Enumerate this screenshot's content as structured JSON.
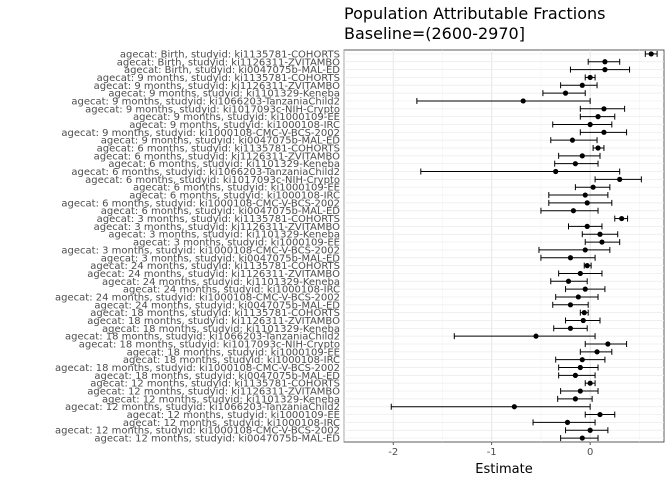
{
  "chart_data": {
    "type": "forest",
    "title": "Population Attributable Fractions",
    "subtitle": "Baseline=(2600-2970]",
    "xlabel": "Estimate",
    "xlim": [
      -2.5,
      0.75
    ],
    "x_ticks": [
      -2,
      -1,
      0
    ],
    "x_tick_labels": [
      "-2",
      "-1",
      "0"
    ],
    "grid": true,
    "rows": [
      {
        "label": "agecat: Birth, studyid: ki1135781-COHORTS",
        "est": 0.62,
        "lo": 0.56,
        "hi": 0.68
      },
      {
        "label": "agecat: Birth, studyid: ki1126311-ZVITAMBO",
        "est": 0.15,
        "lo": -0.02,
        "hi": 0.3
      },
      {
        "label": "agecat: Birth, studyid: ki0047075b-MAL-ED",
        "est": 0.15,
        "lo": -0.2,
        "hi": 0.4
      },
      {
        "label": "agecat: 9 months, studyid: ki1135781-COHORTS",
        "est": 0.0,
        "lo": -0.05,
        "hi": 0.05
      },
      {
        "label": "agecat: 9 months, studyid: ki1126311-ZVITAMBO",
        "est": -0.08,
        "lo": -0.3,
        "hi": 0.07
      },
      {
        "label": "agecat: 9 months, studyid: ki1101329-Keneba",
        "est": -0.25,
        "lo": -0.48,
        "hi": -0.05
      },
      {
        "label": "agecat: 9 months, studyid: ki1066203-TanzaniaChild2",
        "est": -0.68,
        "lo": -1.76,
        "hi": 0.0
      },
      {
        "label": "agecat: 9 months, studyid: ki1017093c-NIH-Crypto",
        "est": 0.14,
        "lo": -0.1,
        "hi": 0.35
      },
      {
        "label": "agecat: 9 months, studyid: ki1000109-EE",
        "est": 0.08,
        "lo": -0.1,
        "hi": 0.25
      },
      {
        "label": "agecat: 9 months, studyid: ki1000108-IRC",
        "est": 0.0,
        "lo": -0.38,
        "hi": 0.22
      },
      {
        "label": "agecat: 9 months, studyid: ki1000108-CMC-V-BCS-2002",
        "est": 0.14,
        "lo": -0.1,
        "hi": 0.37
      },
      {
        "label": "agecat: 9 months, studyid: ki0047075b-MAL-ED",
        "est": -0.18,
        "lo": -0.4,
        "hi": 0.07
      },
      {
        "label": "agecat: 6 months, studyid: ki1135781-COHORTS",
        "est": 0.08,
        "lo": 0.03,
        "hi": 0.14
      },
      {
        "label": "agecat: 6 months, studyid: ki1126311-ZVITAMBO",
        "est": -0.08,
        "lo": -0.32,
        "hi": 0.1
      },
      {
        "label": "agecat: 6 months, studyid: ki1101329-Keneba",
        "est": -0.15,
        "lo": -0.36,
        "hi": 0.08
      },
      {
        "label": "agecat: 6 months, studyid: ki1066203-TanzaniaChild2",
        "est": -0.35,
        "lo": -1.72,
        "hi": 0.3
      },
      {
        "label": "agecat: 6 months, studyid: ki1017093c-NIH-Crypto",
        "est": 0.3,
        "lo": 0.05,
        "hi": 0.52
      },
      {
        "label": "agecat: 6 months, studyid: ki1000109-EE",
        "est": 0.03,
        "lo": -0.15,
        "hi": 0.2
      },
      {
        "label": "agecat: 6 months, studyid: ki1000108-IRC",
        "est": -0.05,
        "lo": -0.42,
        "hi": 0.18
      },
      {
        "label": "agecat: 6 months, studyid: ki1000108-CMC-V-BCS-2002",
        "est": -0.03,
        "lo": -0.42,
        "hi": 0.22
      },
      {
        "label": "agecat: 6 months, studyid: ki0047075b-MAL-ED",
        "est": -0.17,
        "lo": -0.5,
        "hi": 0.08
      },
      {
        "label": "agecat: 3 months, studyid: ki1135781-COHORTS",
        "est": 0.32,
        "lo": 0.25,
        "hi": 0.38
      },
      {
        "label": "agecat: 3 months, studyid: ki1126311-ZVITAMBO",
        "est": -0.03,
        "lo": -0.22,
        "hi": 0.12
      },
      {
        "label": "agecat: 3 months, studyid: ki1101329-Keneba",
        "est": 0.1,
        "lo": -0.08,
        "hi": 0.28
      },
      {
        "label": "agecat: 3 months, studyid: ki1000109-EE",
        "est": 0.12,
        "lo": -0.05,
        "hi": 0.3
      },
      {
        "label": "agecat: 3 months, studyid: ki1000108-CMC-V-BCS-2002",
        "est": -0.05,
        "lo": -0.52,
        "hi": 0.2
      },
      {
        "label": "agecat: 3 months, studyid: ki0047075b-MAL-ED",
        "est": -0.2,
        "lo": -0.5,
        "hi": 0.05
      },
      {
        "label": "agecat: 24 months, studyid: ki1135781-COHORTS",
        "est": -0.03,
        "lo": -0.06,
        "hi": 0.01
      },
      {
        "label": "agecat: 24 months, studyid: ki1126311-ZVITAMBO",
        "est": -0.1,
        "lo": -0.32,
        "hi": 0.12
      },
      {
        "label": "agecat: 24 months, studyid: ki1101329-Keneba",
        "est": -0.22,
        "lo": -0.4,
        "hi": -0.03
      },
      {
        "label": "agecat: 24 months, studyid: ki1000108-IRC",
        "est": -0.05,
        "lo": -0.25,
        "hi": 0.15
      },
      {
        "label": "agecat: 24 months, studyid: ki1000108-CMC-V-BCS-2002",
        "est": -0.12,
        "lo": -0.35,
        "hi": 0.08
      },
      {
        "label": "agecat: 24 months, studyid: ki0047075b-MAL-ED",
        "est": -0.2,
        "lo": -0.38,
        "hi": -0.02
      },
      {
        "label": "agecat: 18 months, studyid: ki1135781-COHORTS",
        "est": -0.06,
        "lo": -0.1,
        "hi": -0.02
      },
      {
        "label": "agecat: 18 months, studyid: ki1126311-ZVITAMBO",
        "est": -0.07,
        "lo": -0.25,
        "hi": 0.1
      },
      {
        "label": "agecat: 18 months, studyid: ki1101329-Keneba",
        "est": -0.2,
        "lo": -0.37,
        "hi": -0.03
      },
      {
        "label": "agecat: 18 months, studyid: ki1066203-TanzaniaChild2",
        "est": -0.55,
        "lo": -1.38,
        "hi": 0.05
      },
      {
        "label": "agecat: 18 months, studyid: ki1017093c-NIH-Crypto",
        "est": 0.18,
        "lo": -0.05,
        "hi": 0.37
      },
      {
        "label": "agecat: 18 months, studyid: ki1000109-EE",
        "est": 0.07,
        "lo": -0.1,
        "hi": 0.22
      },
      {
        "label": "agecat: 18 months, studyid: ki1000108-IRC",
        "est": -0.08,
        "lo": -0.35,
        "hi": 0.15
      },
      {
        "label": "agecat: 18 months, studyid: ki1000108-CMC-V-BCS-2002",
        "est": -0.1,
        "lo": -0.32,
        "hi": 0.08
      },
      {
        "label": "agecat: 18 months, studyid: ki0047075b-MAL-ED",
        "est": -0.15,
        "lo": -0.32,
        "hi": 0.05
      },
      {
        "label": "agecat: 12 months, studyid: ki1135781-COHORTS",
        "est": 0.0,
        "lo": -0.05,
        "hi": 0.05
      },
      {
        "label": "agecat: 12 months, studyid: ki1126311-ZVITAMBO",
        "est": -0.1,
        "lo": -0.3,
        "hi": 0.08
      },
      {
        "label": "agecat: 12 months, studyid: ki1101329-Keneba",
        "est": -0.15,
        "lo": -0.33,
        "hi": 0.02
      },
      {
        "label": "agecat: 12 months, studyid: ki1066203-TanzaniaChild2",
        "est": -0.77,
        "lo": -2.02,
        "hi": 0.0
      },
      {
        "label": "agecat: 12 months, studyid: ki1000109-EE",
        "est": 0.1,
        "lo": -0.05,
        "hi": 0.25
      },
      {
        "label": "agecat: 12 months, studyid: ki1000108-IRC",
        "est": -0.23,
        "lo": -0.58,
        "hi": 0.05
      },
      {
        "label": "agecat: 12 months, studyid: ki1000108-CMC-V-BCS-2002",
        "est": 0.0,
        "lo": -0.25,
        "hi": 0.18
      },
      {
        "label": "agecat: 12 months, studyid: ki0047075b-MAL-ED",
        "est": -0.08,
        "lo": -0.3,
        "hi": 0.08
      }
    ]
  }
}
